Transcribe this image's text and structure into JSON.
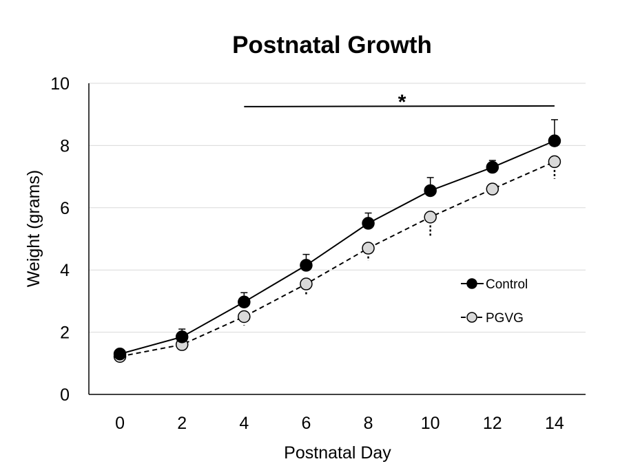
{
  "chart_data": {
    "type": "line",
    "title": "Postnatal Growth",
    "xlabel": "Postnatal Day",
    "ylabel": "Weight (grams)",
    "x": [
      0,
      2,
      4,
      6,
      8,
      10,
      12,
      14
    ],
    "xlim": [
      -1,
      15
    ],
    "ylim": [
      0,
      10
    ],
    "yticks": [
      0,
      2,
      4,
      6,
      8,
      10
    ],
    "grid": "horizontal",
    "legend_position": "right",
    "series": [
      {
        "name": "Control",
        "values": [
          1.3,
          1.85,
          2.97,
          4.15,
          5.5,
          6.55,
          7.3,
          8.15
        ],
        "error": [
          0.05,
          0.25,
          0.3,
          0.35,
          0.33,
          0.42,
          0.22,
          0.68
        ],
        "line_style": "solid",
        "marker_fill": "#000000",
        "marker_stroke": "#000000"
      },
      {
        "name": "PGVG",
        "values": [
          1.22,
          1.6,
          2.5,
          3.55,
          4.7,
          5.7,
          6.6,
          7.48
        ],
        "error": [
          0.05,
          0.08,
          0.28,
          0.35,
          0.4,
          0.6,
          0.2,
          0.55
        ],
        "line_style": "dashed",
        "marker_fill": "#d9d9d9",
        "marker_stroke": "#000000"
      }
    ],
    "significance": {
      "label": "*",
      "x_range": [
        4,
        14
      ],
      "y": 9.25
    }
  }
}
